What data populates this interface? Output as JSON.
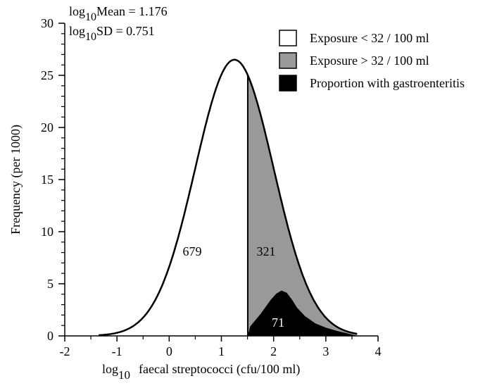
{
  "chart_data": {
    "type": "area",
    "title": "",
    "annotations": [
      {
        "base": "log",
        "sub": "10",
        "text": "Mean = 1.176"
      },
      {
        "base": "log",
        "sub": "10",
        "text": "SD = 0.751"
      }
    ],
    "xlabel": {
      "base": "log",
      "sub": "10",
      "text": "faecal streptococci (cfu/100 ml)"
    },
    "ylabel": "Frequency (per 1000)",
    "xlim": [
      -2,
      4
    ],
    "ylim": [
      0,
      30
    ],
    "xticks": [
      -2,
      -1,
      0,
      1,
      2,
      3,
      4
    ],
    "yticks": [
      0,
      5,
      10,
      15,
      20,
      25,
      30
    ],
    "grid": false,
    "legend_position": "top-right",
    "distribution": {
      "mean": 1.176,
      "sd": 0.751,
      "x_range": [
        -1.35,
        3.6
      ]
    },
    "cutoff_x": 1.505,
    "curve_peak": 26.5,
    "illness_curve": [
      {
        "x": 1.505,
        "y": 0.0
      },
      {
        "x": 1.55,
        "y": 0.9
      },
      {
        "x": 1.65,
        "y": 1.5
      },
      {
        "x": 1.75,
        "y": 2.1
      },
      {
        "x": 1.85,
        "y": 2.8
      },
      {
        "x": 1.95,
        "y": 3.5
      },
      {
        "x": 2.05,
        "y": 4.05
      },
      {
        "x": 2.15,
        "y": 4.35
      },
      {
        "x": 2.25,
        "y": 4.15
      },
      {
        "x": 2.35,
        "y": 3.5
      },
      {
        "x": 2.45,
        "y": 2.7
      },
      {
        "x": 2.6,
        "y": 1.9
      },
      {
        "x": 2.8,
        "y": 1.2
      },
      {
        "x": 3.0,
        "y": 0.8
      },
      {
        "x": 3.2,
        "y": 0.5
      },
      {
        "x": 3.4,
        "y": 0.25
      },
      {
        "x": 3.6,
        "y": 0.0
      }
    ],
    "series": [
      {
        "name": "Exposure < 32 / 100 ml",
        "color": "#ffffff",
        "label": "679"
      },
      {
        "name": "Exposure > 32 / 100 ml",
        "color": "#999999",
        "label": "321"
      },
      {
        "name": "Proportion with gastroenteritis",
        "color": "#000000",
        "label": "71"
      }
    ]
  }
}
